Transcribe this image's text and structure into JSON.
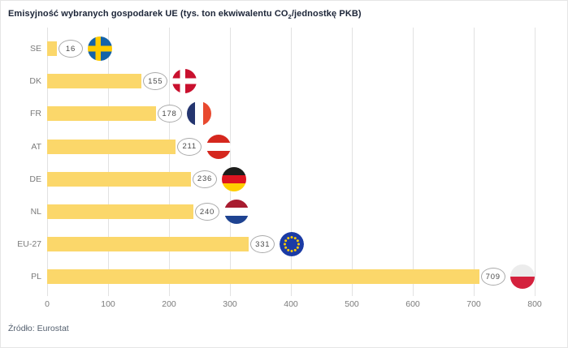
{
  "title": {
    "prefix": "Emisyjność wybranych gospodarek UE (tys. ton ekwiwalentu CO",
    "sub": "2",
    "suffix": "/jednostkę PKB)"
  },
  "source": "Źródło: Eurostat",
  "chart_data": {
    "type": "bar",
    "orientation": "horizontal",
    "title": "Emisyjność wybranych gospodarek UE (tys. ton ekwiwalentu CO2/jednostkę PKB)",
    "categories": [
      "SE",
      "DK",
      "FR",
      "AT",
      "DE",
      "NL",
      "EU-27",
      "PL"
    ],
    "values": [
      16,
      155,
      178,
      211,
      236,
      240,
      331,
      709
    ],
    "value_labels": [
      "16",
      "155",
      "178",
      "211",
      "236",
      "240",
      "331",
      "709"
    ],
    "xlabel": "",
    "ylabel": "",
    "xlim": [
      0,
      800
    ],
    "x_ticks": [
      0,
      100,
      200,
      300,
      400,
      500,
      600,
      700,
      800
    ],
    "grid": "vertical",
    "legend": "none",
    "bar_color": "#FBD76A",
    "colors": {
      "grid": "#e2e2e2",
      "title_text": "#1b2437",
      "axis_text": "#7b7b7b",
      "bubble_border": "#aaaaaa",
      "bubble_text": "#4a4a4a",
      "source_text": "#535f6e"
    },
    "flags": {
      "SE": {
        "name": "sweden-flag-icon",
        "type": "nordic-cross",
        "bg": "#1463A9",
        "cross": "#FFCB00"
      },
      "DK": {
        "name": "denmark-flag-icon",
        "type": "nordic-cross",
        "bg": "#C9102E",
        "cross": "#FFFFFF"
      },
      "FR": {
        "name": "france-flag-icon",
        "type": "vertical",
        "colors": [
          "#24356F",
          "#FFFFFF",
          "#E8492F"
        ]
      },
      "AT": {
        "name": "austria-flag-icon",
        "type": "horizontal",
        "colors": [
          "#D5271E",
          "#FFFFFF",
          "#D5271E"
        ]
      },
      "DE": {
        "name": "germany-flag-icon",
        "type": "horizontal",
        "colors": [
          "#1d1d1b",
          "#DD1420",
          "#FFCE00"
        ]
      },
      "NL": {
        "name": "netherlands-flag-icon",
        "type": "horizontal",
        "colors": [
          "#A81C30",
          "#FFFFFF",
          "#1E4391"
        ]
      },
      "EU-27": {
        "name": "eu-flag-icon",
        "type": "eu",
        "bg": "#1B3BA5",
        "stars": "#FFCC00"
      },
      "PL": {
        "name": "poland-flag-icon",
        "type": "horizontal-2",
        "colors": [
          "#ECECEC",
          "#D4213D"
        ]
      }
    }
  }
}
